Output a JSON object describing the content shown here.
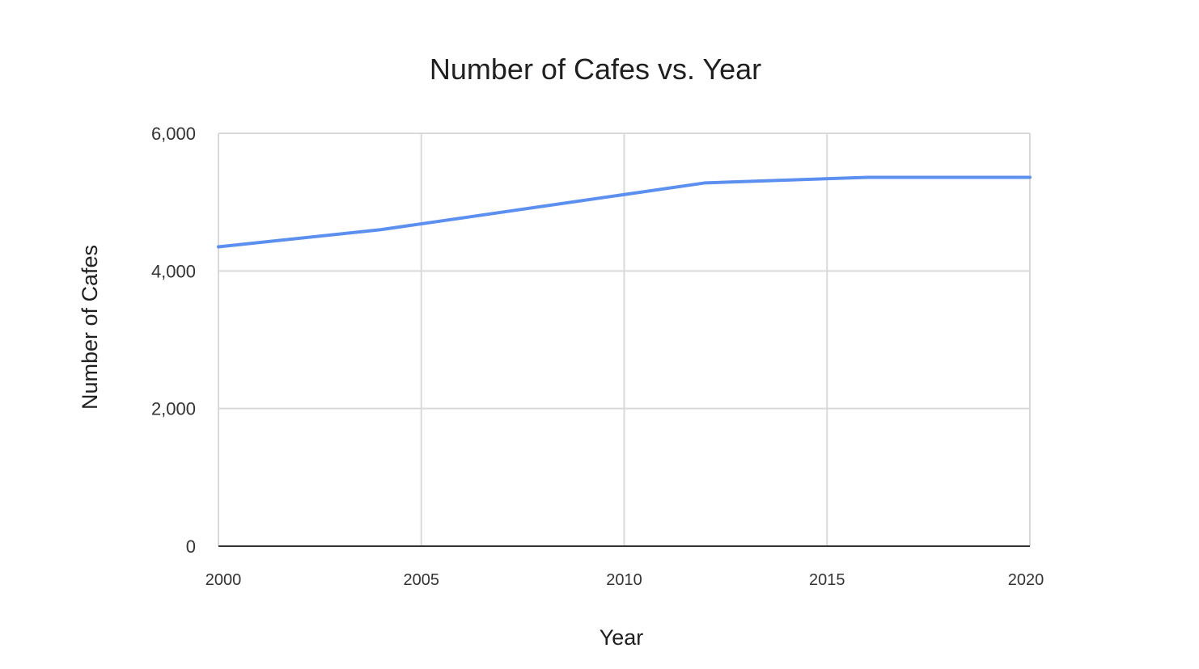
{
  "chart_data": {
    "type": "line",
    "title": "Number of Cafes vs. Year",
    "xlabel": "Year",
    "ylabel": "Number of Cafes",
    "x": [
      2000,
      2004,
      2012,
      2016,
      2020
    ],
    "series": [
      {
        "values": [
          4350,
          4600,
          5280,
          5360,
          5360
        ]
      }
    ],
    "xlim": [
      2000,
      2020
    ],
    "ylim": [
      0,
      6000
    ],
    "x_ticks": [
      "2000",
      "2005",
      "2010",
      "2015",
      "2020"
    ],
    "y_ticks": [
      "0",
      "2,000",
      "4,000",
      "6,000"
    ],
    "grid": true,
    "legend": "none",
    "colors": {
      "line": "#5b8ff0",
      "grid": "#d9d9d9",
      "axis": "#333333"
    }
  }
}
